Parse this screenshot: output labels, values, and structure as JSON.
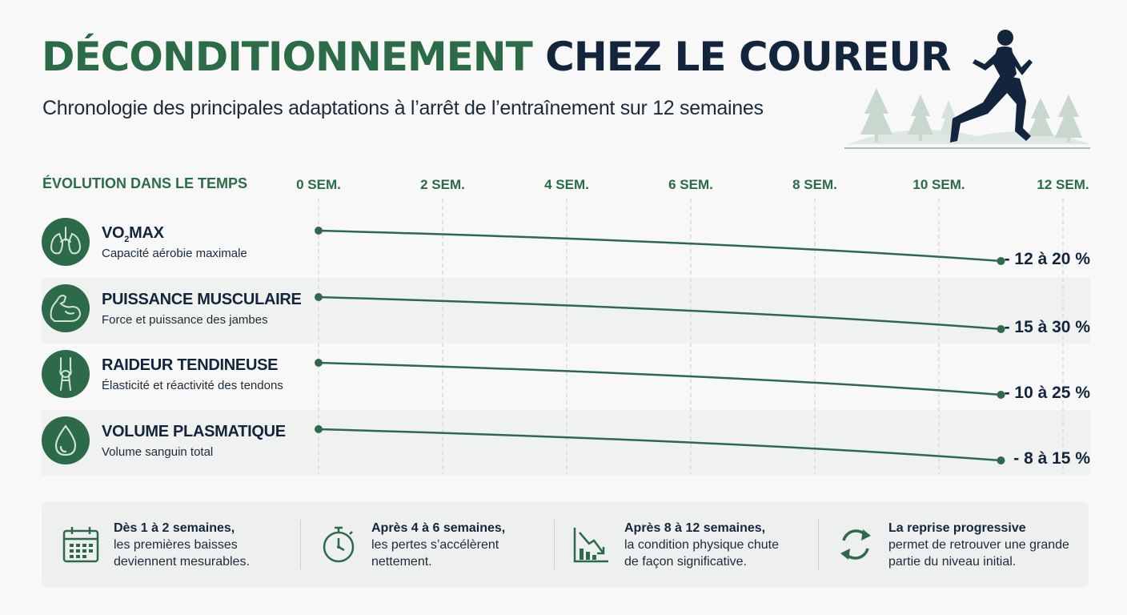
{
  "title": {
    "part1": "DÉCONDITIONNEMENT",
    "part2": "CHEZ LE COUREUR"
  },
  "subtitle": "Chronologie des principales adaptations à l’arrêt de l’entraînement sur 12 semaines",
  "colors": {
    "accent": "#2c6b47",
    "dark": "#13253c",
    "line": "#2d6a4a",
    "footer_bg": "#edf0ee"
  },
  "chart_data": {
    "type": "line",
    "axis_label": "ÉVOLUTION DANS LE TEMPS",
    "x_ticks": [
      {
        "value": 0,
        "label": "0 SEM."
      },
      {
        "value": 2,
        "label": "2 SEM."
      },
      {
        "value": 4,
        "label": "4 SEM."
      },
      {
        "value": 6,
        "label": "6 SEM."
      },
      {
        "value": 8,
        "label": "8 SEM."
      },
      {
        "value": 10,
        "label": "10 SEM."
      },
      {
        "value": 12,
        "label": "12 SEM."
      }
    ],
    "xlim": [
      0,
      12
    ],
    "grid": "vertical-dashed",
    "series": [
      {
        "name": "VO",
        "sub": "2",
        "name_suffix": "MAX",
        "description": "Capacité aérobie maximale",
        "icon": "lungs-icon",
        "change": "- 12 à 20 %",
        "start_week": 0,
        "end_week": 11
      },
      {
        "name": "PUISSANCE MUSCULAIRE",
        "sub": "",
        "name_suffix": "",
        "description": "Force et puissance des jambes",
        "icon": "muscle-arm-icon",
        "change": "- 15 à 30 %",
        "start_week": 0,
        "end_week": 11
      },
      {
        "name": "RAIDEUR TENDINEUSE",
        "sub": "",
        "name_suffix": "",
        "description": "Élasticité et réactivité des tendons",
        "icon": "knee-joint-icon",
        "change": "- 10 à 25 %",
        "start_week": 0,
        "end_week": 11
      },
      {
        "name": "VOLUME PLASMATIQUE",
        "sub": "",
        "name_suffix": "",
        "description": "Volume sanguin total",
        "icon": "blood-drop-icon",
        "change": "- 8 à 15 %",
        "start_week": 0,
        "end_week": 11
      }
    ]
  },
  "footer": {
    "notes": [
      {
        "icon": "calendar-icon",
        "bold": "Dès 1 à 2 semaines,",
        "lines": [
          "les premières baisses",
          "deviennent mesurables."
        ]
      },
      {
        "icon": "stopwatch-icon",
        "bold": "Après 4 à 6 semaines,",
        "lines": [
          "les pertes s’accélèrent",
          "nettement."
        ]
      },
      {
        "icon": "declining-chart-icon",
        "bold": "Après 8 à 12 semaines,",
        "lines": [
          "la condition physique chute",
          "de façon significative."
        ]
      },
      {
        "icon": "refresh-cycle-icon",
        "bold": "La reprise progressive",
        "lines": [
          "permet de retrouver une grande",
          "partie du niveau initial."
        ]
      }
    ]
  }
}
